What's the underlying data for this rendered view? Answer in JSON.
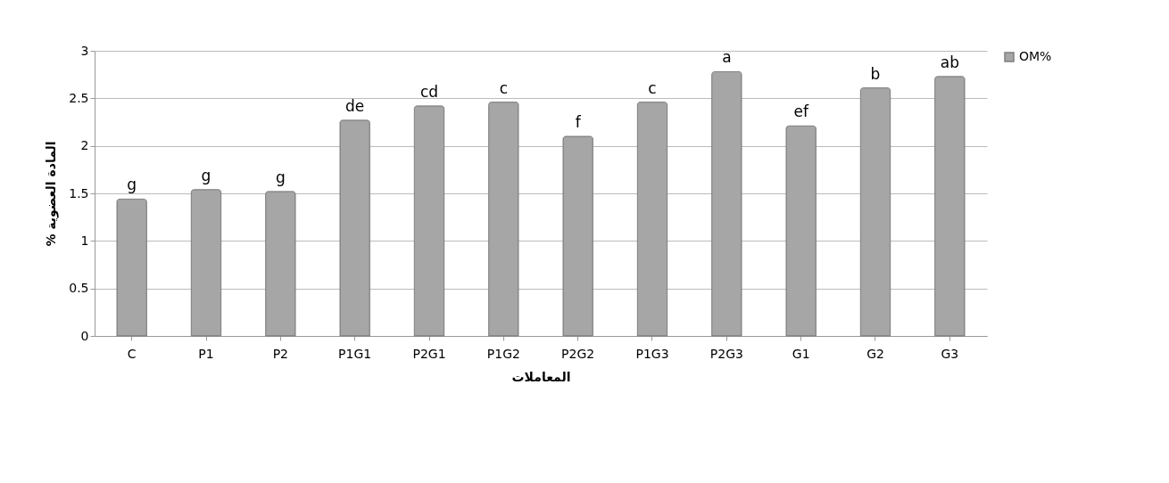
{
  "chart_data": {
    "type": "bar",
    "xlabel": "المعاملات",
    "ylabel": "% المادة العضوية",
    "categories": [
      "C",
      "P1",
      "P2",
      "P1G1",
      "P2G1",
      "P1G2",
      "P2G2",
      "P1G3",
      "P2G3",
      "G1",
      "G2",
      "G3"
    ],
    "series": [
      {
        "name": "OM%",
        "color": "#a6a6a6",
        "values": [
          1.44,
          1.54,
          1.52,
          2.27,
          2.42,
          2.46,
          2.1,
          2.46,
          2.78,
          2.21,
          2.61,
          2.73
        ]
      }
    ],
    "ylim": [
      0,
      3
    ],
    "yticks": [
      0,
      0.5,
      1,
      1.5,
      2,
      2.5,
      3
    ],
    "grid": "y",
    "legend": "right",
    "annotations": [
      {
        "text": "g",
        "x": "C",
        "y": 1.44
      },
      {
        "text": "g",
        "x": "P1",
        "y": 1.54
      },
      {
        "text": "g",
        "x": "P2",
        "y": 1.52
      },
      {
        "text": "de",
        "x": "P1G1",
        "y": 2.27
      },
      {
        "text": "cd",
        "x": "P2G1",
        "y": 2.42
      },
      {
        "text": "c",
        "x": "P1G2",
        "y": 2.46
      },
      {
        "text": "f",
        "x": "P2G2",
        "y": 2.1
      },
      {
        "text": "c",
        "x": "P1G3",
        "y": 2.46
      },
      {
        "text": "a",
        "x": "P2G3",
        "y": 2.78
      },
      {
        "text": "ef",
        "x": "G1",
        "y": 2.21
      },
      {
        "text": "b",
        "x": "G2",
        "y": 2.61
      },
      {
        "text": "ab",
        "x": "G3",
        "y": 2.73
      }
    ]
  }
}
